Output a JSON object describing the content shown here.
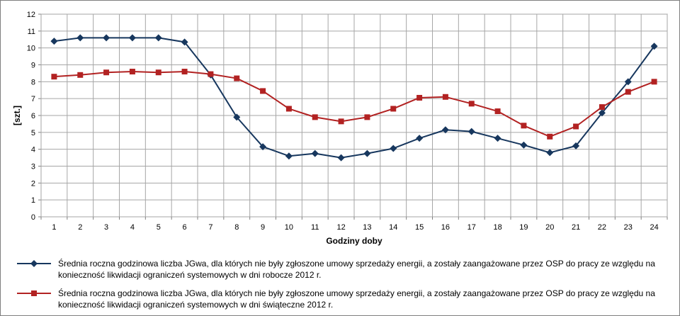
{
  "chart_data": {
    "type": "line",
    "x": [
      1,
      2,
      3,
      4,
      5,
      6,
      7,
      8,
      9,
      10,
      11,
      12,
      13,
      14,
      15,
      16,
      17,
      18,
      19,
      20,
      21,
      22,
      23,
      24
    ],
    "xlabel": "Godziny doby",
    "ylabel": "[szt.]",
    "ylim": [
      0,
      12
    ],
    "yticks": [
      0,
      1,
      2,
      3,
      4,
      5,
      6,
      7,
      8,
      9,
      10,
      11,
      12
    ],
    "grid": true,
    "legend_position": "bottom",
    "series": [
      {
        "name": "Średnia roczna godzinowa liczba JGwa, dla których nie były zgłoszone umowy sprzedaży energii, a zostały zaangażowane przez OSP do pracy ze względu na konieczność likwidacji ograniczeń systemowych w dni robocze 2012 r.",
        "color": "#17375e",
        "marker": "diamond",
        "values": [
          10.4,
          10.6,
          10.6,
          10.6,
          10.6,
          10.35,
          8.4,
          5.9,
          4.15,
          3.6,
          3.75,
          3.5,
          3.75,
          4.05,
          4.65,
          5.15,
          5.05,
          4.65,
          4.25,
          3.8,
          4.2,
          6.15,
          8.0,
          10.1
        ]
      },
      {
        "name": "Średnia roczna godzinowa liczba JGwa, dla których nie były zgłoszone umowy sprzedaży energii, a zostały zaangażowane przez OSP do pracy ze względu na konieczność likwidacji ograniczeń systemowych w dni świąteczne 2012 r.",
        "color": "#b22222",
        "marker": "square",
        "values": [
          8.3,
          8.4,
          8.55,
          8.6,
          8.55,
          8.6,
          8.45,
          8.2,
          7.45,
          6.4,
          5.9,
          5.65,
          5.9,
          6.4,
          7.05,
          7.1,
          6.7,
          6.25,
          5.4,
          4.75,
          5.35,
          6.5,
          7.4,
          8.0
        ]
      }
    ]
  }
}
